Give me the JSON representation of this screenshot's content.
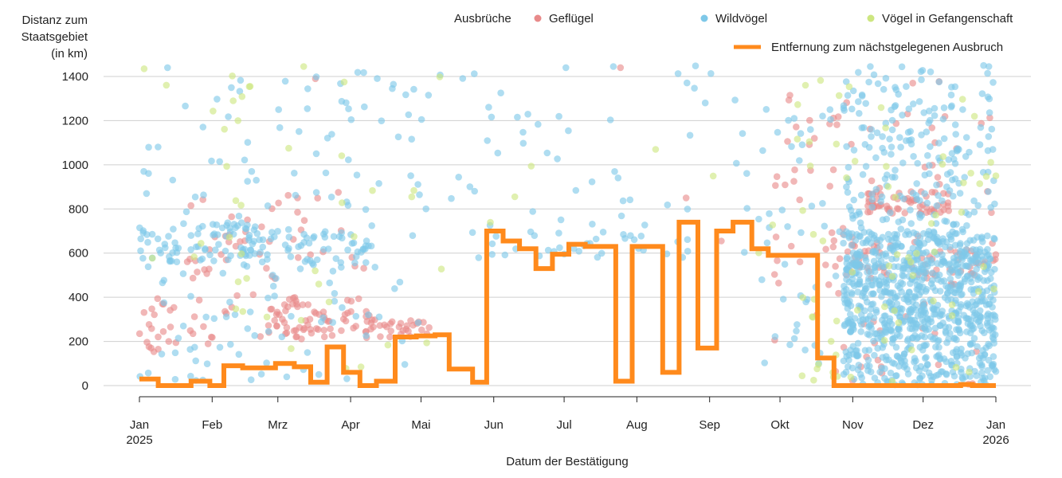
{
  "chart_data": {
    "type": "scatter",
    "title": "",
    "ylabel_lines": [
      "Distanz zum",
      "Staatsgebiet",
      "(in km)"
    ],
    "xlabel": "Datum der Bestätigung",
    "ylim": [
      0,
      1450
    ],
    "yticks": [
      0,
      200,
      400,
      600,
      800,
      1000,
      1200,
      1400
    ],
    "xlim_days": [
      0,
      365
    ],
    "xticks": [
      {
        "day": 0,
        "label": "Jan",
        "label2": "2025"
      },
      {
        "day": 31,
        "label": "Feb",
        "label2": ""
      },
      {
        "day": 59,
        "label": "Mrz",
        "label2": ""
      },
      {
        "day": 90,
        "label": "Apr",
        "label2": ""
      },
      {
        "day": 120,
        "label": "Mai",
        "label2": ""
      },
      {
        "day": 151,
        "label": "Jun",
        "label2": ""
      },
      {
        "day": 181,
        "label": "Jul",
        "label2": ""
      },
      {
        "day": 212,
        "label": "Aug",
        "label2": ""
      },
      {
        "day": 243,
        "label": "Sep",
        "label2": ""
      },
      {
        "day": 273,
        "label": "Okt",
        "label2": ""
      },
      {
        "day": 304,
        "label": "Nov",
        "label2": ""
      },
      {
        "day": 334,
        "label": "Dez",
        "label2": ""
      },
      {
        "day": 365,
        "label": "Jan",
        "label2": "2026"
      }
    ],
    "legend": {
      "group_title": "Ausbrüche",
      "items": [
        {
          "name": "Geflügel",
          "color": "#e88a8a"
        },
        {
          "name": "Wildvögel",
          "color": "#7ec8e8"
        },
        {
          "name": "Vögel in Gefangenschaft",
          "color": "#cde680"
        }
      ],
      "line_item": {
        "name": "Entfernung zum nächstgelegenen Ausbruch",
        "color": "#ff8a1c"
      }
    },
    "series": [
      {
        "name": "Geflügel",
        "color": "#e88a8a",
        "clusters": [
          {
            "from": 0,
            "to": 30,
            "ymin": 150,
            "ymax": 400,
            "n": 25
          },
          {
            "from": 20,
            "to": 60,
            "ymin": 200,
            "ymax": 880,
            "n": 40
          },
          {
            "from": 55,
            "to": 100,
            "ymin": 210,
            "ymax": 400,
            "n": 70
          },
          {
            "from": 95,
            "to": 125,
            "ymin": 220,
            "ymax": 300,
            "n": 30
          },
          {
            "from": 60,
            "to": 100,
            "ymin": 500,
            "ymax": 880,
            "n": 15
          },
          {
            "from": 270,
            "to": 300,
            "ymin": 160,
            "ymax": 1320,
            "n": 30
          },
          {
            "from": 295,
            "to": 365,
            "ymin": 500,
            "ymax": 650,
            "n": 60
          },
          {
            "from": 310,
            "to": 345,
            "ymin": 780,
            "ymax": 880,
            "n": 60
          },
          {
            "from": 295,
            "to": 365,
            "ymin": 0,
            "ymax": 1400,
            "n": 60
          }
        ],
        "points": [
          [
            5,
            170
          ],
          [
            8,
            165
          ],
          [
            75,
            1390
          ],
          [
            205,
            1440
          ],
          [
            233,
            850
          ],
          [
            248,
            655
          ]
        ]
      },
      {
        "name": "Wildvögel",
        "color": "#7ec8e8",
        "clusters": [
          {
            "from": 0,
            "to": 60,
            "ymin": 560,
            "ymax": 740,
            "n": 90
          },
          {
            "from": 0,
            "to": 120,
            "ymin": 20,
            "ymax": 1430,
            "n": 150
          },
          {
            "from": 60,
            "to": 100,
            "ymin": 550,
            "ymax": 700,
            "n": 40
          },
          {
            "from": 120,
            "to": 270,
            "ymin": 500,
            "ymax": 1450,
            "n": 60
          },
          {
            "from": 150,
            "to": 240,
            "ymin": 580,
            "ymax": 700,
            "n": 30
          },
          {
            "from": 265,
            "to": 300,
            "ymin": 0,
            "ymax": 1300,
            "n": 40
          },
          {
            "from": 300,
            "to": 365,
            "ymin": 0,
            "ymax": 1450,
            "n": 380
          },
          {
            "from": 300,
            "to": 365,
            "ymin": 250,
            "ymax": 700,
            "n": 520
          },
          {
            "from": 300,
            "to": 365,
            "ymin": 0,
            "ymax": 250,
            "n": 180
          }
        ],
        "points": [
          [
            12,
            1440
          ],
          [
            202,
            1445
          ],
          [
            237,
            1448
          ],
          [
            362,
            1445
          ]
        ]
      },
      {
        "name": "Vögel in Gefangenschaft",
        "color": "#cde680",
        "clusters": [
          {
            "from": 0,
            "to": 130,
            "ymin": 20,
            "ymax": 1440,
            "n": 40
          },
          {
            "from": 140,
            "to": 270,
            "ymin": 600,
            "ymax": 1060,
            "n": 5
          },
          {
            "from": 280,
            "to": 365,
            "ymin": 0,
            "ymax": 1400,
            "n": 70
          }
        ],
        "points": [
          [
            2,
            1435
          ],
          [
            42,
            1200
          ],
          [
            70,
            1445
          ],
          [
            160,
            855
          ],
          [
            220,
            1070
          ],
          [
            365,
            950
          ]
        ]
      }
    ],
    "line_steps": [
      [
        0,
        30
      ],
      [
        8,
        0
      ],
      [
        22,
        20
      ],
      [
        30,
        0
      ],
      [
        36,
        90
      ],
      [
        44,
        80
      ],
      [
        58,
        100
      ],
      [
        66,
        85
      ],
      [
        73,
        15
      ],
      [
        80,
        175
      ],
      [
        87,
        60
      ],
      [
        94,
        0
      ],
      [
        101,
        20
      ],
      [
        109,
        220
      ],
      [
        118,
        225
      ],
      [
        126,
        230
      ],
      [
        132,
        75
      ],
      [
        142,
        15
      ],
      [
        148,
        700
      ],
      [
        155,
        655
      ],
      [
        162,
        620
      ],
      [
        169,
        530
      ],
      [
        176,
        595
      ],
      [
        183,
        640
      ],
      [
        190,
        630
      ],
      [
        197,
        630
      ],
      [
        203,
        20
      ],
      [
        210,
        630
      ],
      [
        217,
        630
      ],
      [
        223,
        60
      ],
      [
        230,
        740
      ],
      [
        238,
        170
      ],
      [
        246,
        700
      ],
      [
        253,
        740
      ],
      [
        261,
        620
      ],
      [
        268,
        590
      ],
      [
        275,
        590
      ],
      [
        289,
        125
      ],
      [
        296,
        0
      ],
      [
        310,
        0
      ],
      [
        330,
        0
      ],
      [
        350,
        5
      ],
      [
        355,
        0
      ],
      [
        365,
        0
      ]
    ]
  }
}
